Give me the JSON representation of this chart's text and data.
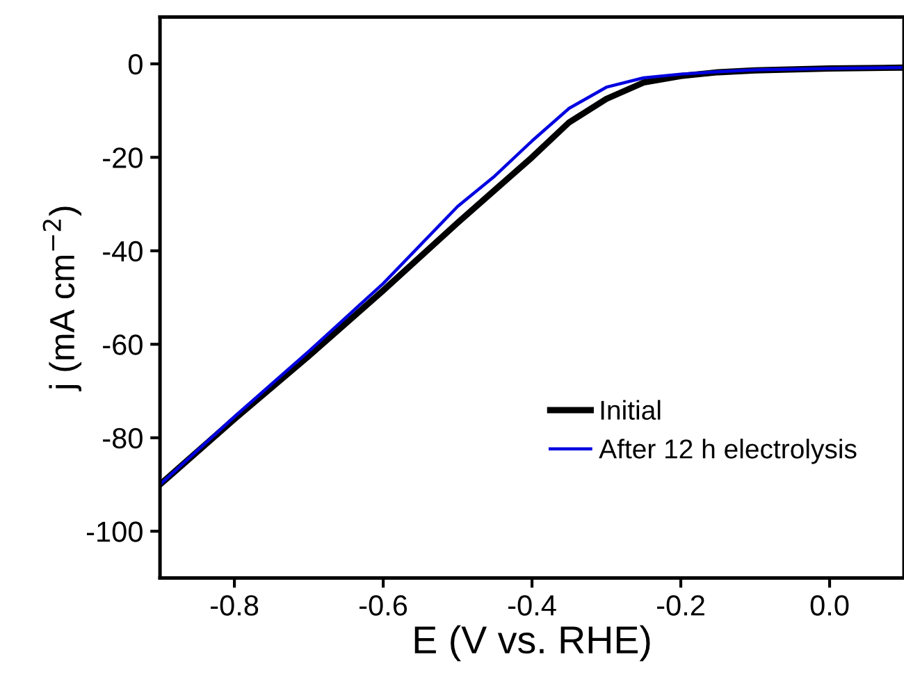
{
  "chart_data": {
    "type": "line",
    "xlabel": "E (V vs. RHE)",
    "ylabel": "j (mA cm$^{−2}$)",
    "xlim": [
      -0.9,
      0.1
    ],
    "xticks": [
      -0.8,
      -0.6,
      -0.4,
      -0.2,
      {
        "value": 0,
        "label": "0.0"
      }
    ],
    "ylim": [
      -110,
      10
    ],
    "yticks": [
      0,
      -20,
      -40,
      -60,
      -80,
      -100
    ],
    "x": [
      -0.9,
      -0.8,
      -0.7,
      -0.6,
      -0.5,
      -0.45,
      -0.4,
      -0.35,
      -0.3,
      -0.25,
      -0.2,
      -0.15,
      -0.1,
      0,
      0.1
    ],
    "series": [
      {
        "name": "Initial",
        "color": "#000000",
        "values": [
          -90,
          -76,
          -62.5,
          -48.5,
          -34,
          -27,
          -20,
          -12.5,
          -7.5,
          -4,
          -2.6,
          -1.8,
          -1.4,
          -1.0,
          -0.8
        ]
      },
      {
        "name": "After 12 h electrolysis",
        "color": "#0000e0",
        "values": [
          -90,
          -75.5,
          -61.5,
          -47,
          -30.5,
          -24,
          -16.5,
          -9.5,
          -5,
          -3,
          -2.2,
          -1.7,
          -1.3,
          -1.0,
          -0.8
        ]
      }
    ],
    "legend": "bottom right",
    "grid": false,
    "marker": "none",
    "line_style": "solid"
  }
}
